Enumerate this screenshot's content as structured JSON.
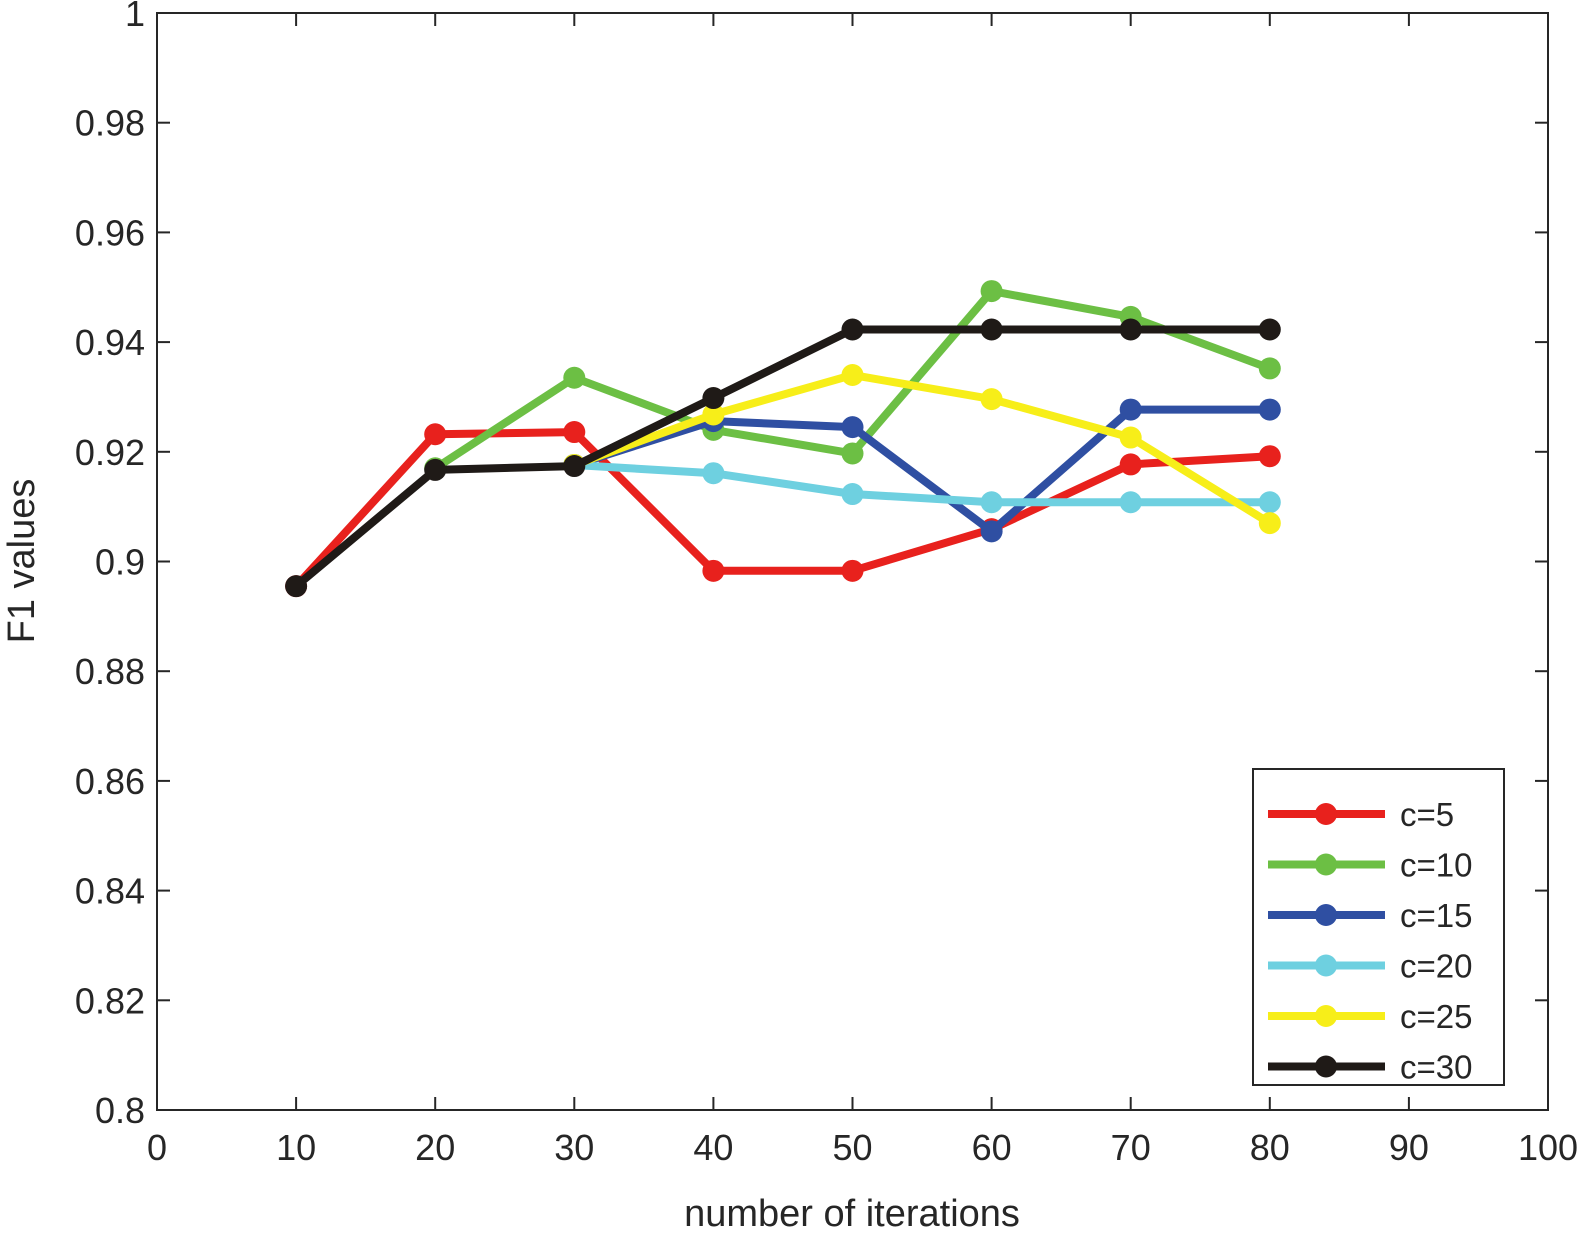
{
  "chart_data": {
    "type": "line",
    "title": "",
    "xlabel": "number of iterations",
    "ylabel": "F1 values",
    "xlim": [
      0,
      100
    ],
    "ylim": [
      0.8,
      1.0
    ],
    "xticks": [
      "0",
      "10",
      "20",
      "30",
      "40",
      "50",
      "60",
      "70",
      "80",
      "90",
      "100"
    ],
    "yticks": [
      "0.8",
      "0.82",
      "0.84",
      "0.86",
      "0.88",
      "0.9",
      "0.92",
      "0.94",
      "0.96",
      "0.98",
      "1"
    ],
    "grid": false,
    "legend_position": "bottom-right",
    "series": [
      {
        "name": "c=5",
        "color": "#e8211d",
        "x": [
          10,
          20,
          30,
          40,
          50,
          60,
          70,
          80
        ],
        "y": [
          0.8955,
          0.9232,
          0.9236,
          0.8983,
          0.8983,
          0.9059,
          0.9177,
          0.9192
        ]
      },
      {
        "name": "c=10",
        "color": "#6cbf44",
        "x": [
          20,
          30,
          40,
          50,
          60,
          70,
          80
        ],
        "y": [
          0.917,
          0.9335,
          0.924,
          0.9197,
          0.9493,
          0.9446,
          0.9352
        ]
      },
      {
        "name": "c=15",
        "color": "#2f4fa2",
        "x": [
          30,
          40,
          50,
          60,
          70,
          80
        ],
        "y": [
          0.9176,
          0.9256,
          0.9245,
          0.9055,
          0.9277,
          0.9277
        ]
      },
      {
        "name": "c=20",
        "color": "#6ed0e0",
        "x": [
          30,
          40,
          50,
          60,
          70,
          80
        ],
        "y": [
          0.9176,
          0.9161,
          0.9123,
          0.9108,
          0.9108,
          0.9108
        ]
      },
      {
        "name": "c=25",
        "color": "#f7ee19",
        "x": [
          30,
          40,
          50,
          60,
          70,
          80
        ],
        "y": [
          0.9176,
          0.9268,
          0.934,
          0.9296,
          0.9226,
          0.907
        ]
      },
      {
        "name": "c=30",
        "color": "#1f1a17",
        "x": [
          10,
          20,
          30,
          40,
          50,
          60,
          70,
          80
        ],
        "y": [
          0.8955,
          0.9167,
          0.9174,
          0.9298,
          0.9423,
          0.9423,
          0.9423,
          0.9423
        ]
      }
    ]
  }
}
